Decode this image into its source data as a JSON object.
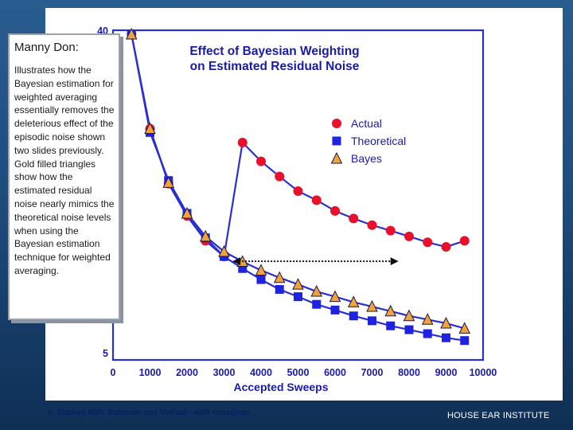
{
  "note": {
    "title": "Manny Don:",
    "body": "Illustrates how the Bayesian estimation for weighted averaging essentially removes the deleterious effect of the episodic noise shown two slides previously. Gold filled triangles show how the estimated residual noise nearly mimics the theoretical noise levels when using the Bayesian estimation technique for weighted averaging."
  },
  "footer": {
    "left": "II. Stacked ABR: Rationale and Method—ABR recordings",
    "right": "HOUSE EAR INSTITUTE"
  },
  "colors": {
    "actual": "#e8102a",
    "theoretical": "#1f23e0",
    "bayes": "#f2a23c",
    "line": "#2a2fd0",
    "axis": "#2a2fd0",
    "title": "#1a1aa8"
  },
  "chart_data": {
    "type": "line",
    "title": "Effect of Bayesian Weighting on Estimated Residual Noise",
    "title_lines": [
      "Effect of Bayesian Weighting",
      "on Estimated Residual Noise"
    ],
    "xlabel": "Accepted Sweeps",
    "ylabel": "",
    "xlim": [
      0,
      10000
    ],
    "ylim": [
      5,
      40
    ],
    "yscale": "log",
    "x_tick_labels": [
      "0",
      "1000",
      "2000",
      "3000",
      "4000",
      "5000",
      "6000",
      "7000",
      "8000",
      "9000",
      "10000"
    ],
    "y_tick_labels": [
      "40",
      "5"
    ],
    "legend_position": "right",
    "legend": [
      "Actual",
      "Theoretical",
      "Bayes"
    ],
    "series": [
      {
        "name": "Actual",
        "marker": "circle",
        "x": [
          500,
          1000,
          1500,
          2000,
          2500,
          3000,
          3500,
          4000,
          4500,
          5000,
          5500,
          6000,
          6500,
          7000,
          7500,
          8000,
          8500,
          9000,
          9500
        ],
        "y": [
          39,
          21.5,
          15.2,
          12.4,
          10.6,
          9.6,
          19.7,
          17.5,
          15.9,
          14.5,
          13.7,
          12.8,
          12.2,
          11.7,
          11.3,
          10.9,
          10.5,
          10.2,
          10.6
        ]
      },
      {
        "name": "Theoretical",
        "marker": "square",
        "x": [
          500,
          1000,
          1500,
          2000,
          2500,
          3000,
          3500,
          4000,
          4500,
          5000,
          5500,
          6000,
          6500,
          7000,
          7500,
          8000,
          8500,
          9000,
          9500
        ],
        "y": [
          39,
          21,
          15.5,
          12.6,
          10.8,
          9.6,
          8.9,
          8.3,
          7.8,
          7.45,
          7.1,
          6.85,
          6.6,
          6.4,
          6.2,
          6.05,
          5.9,
          5.75,
          5.65
        ]
      },
      {
        "name": "Bayes",
        "marker": "triangle",
        "x": [
          500,
          1000,
          1500,
          2000,
          2500,
          3000,
          3500,
          4000,
          4500,
          5000,
          5500,
          6000,
          6500,
          7000,
          7500,
          8000,
          8500,
          9000,
          9500
        ],
        "y": [
          39,
          21.5,
          15.3,
          12.6,
          10.9,
          9.9,
          9.3,
          8.8,
          8.4,
          8.05,
          7.7,
          7.45,
          7.2,
          7.0,
          6.8,
          6.6,
          6.45,
          6.3,
          6.1
        ]
      }
    ],
    "annotation": {
      "type": "double-arrow",
      "style": "dotted",
      "x": [
        3100,
        7800
      ],
      "y": 9.6
    }
  }
}
